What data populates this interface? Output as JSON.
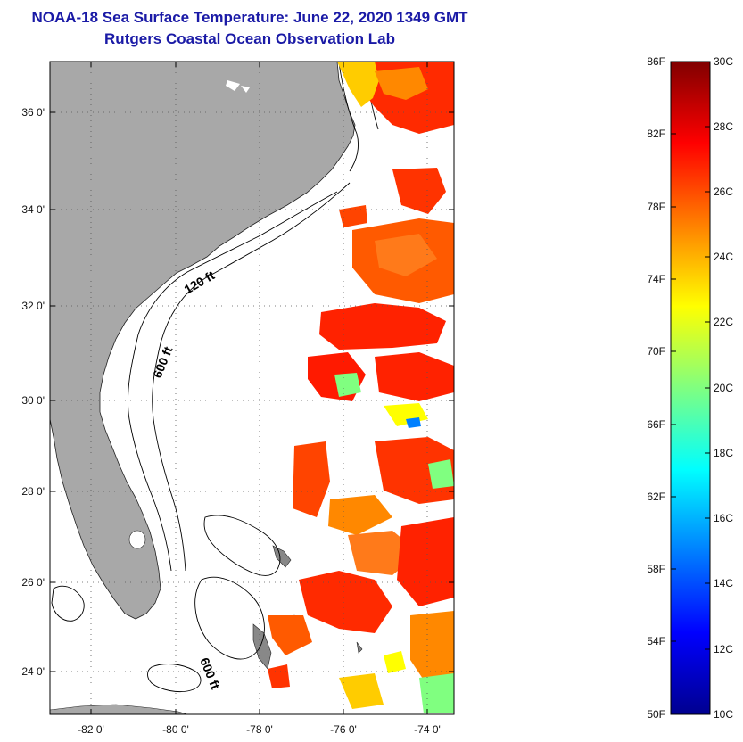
{
  "title": {
    "line1": "NOAA-18 Sea Surface Temperature:  June 22, 2020 1349 GMT",
    "line2": "Rutgers Coastal Ocean Observation Lab"
  },
  "map": {
    "lat_labels": [
      "36 0'",
      "34 0'",
      "32 0'",
      "30 0'",
      "28 0'",
      "26 0'",
      "24 0'"
    ],
    "lon_labels": [
      "-82 0'",
      "-80 0'",
      "-78 0'",
      "-76 0'",
      "-74 0'"
    ],
    "contour_labels": [
      "120 ft",
      "600 ft",
      "600 ft"
    ],
    "colors": {
      "land": "#a8a8a8",
      "ocean": "#ffffff",
      "frame": "#000000"
    }
  },
  "colorbar": {
    "fahrenheit_labels": [
      "86F",
      "82F",
      "78F",
      "74F",
      "70F",
      "66F",
      "62F",
      "58F",
      "54F",
      "50F"
    ],
    "celsius_labels": [
      "30C",
      "28C",
      "26C",
      "24C",
      "22C",
      "20C",
      "18C",
      "16C",
      "14C",
      "12C",
      "10C"
    ],
    "colormap": [
      "#00008f",
      "#0000ff",
      "#0080ff",
      "#00ffff",
      "#80ff80",
      "#ffff00",
      "#ff8000",
      "#ff0000",
      "#800000"
    ]
  }
}
